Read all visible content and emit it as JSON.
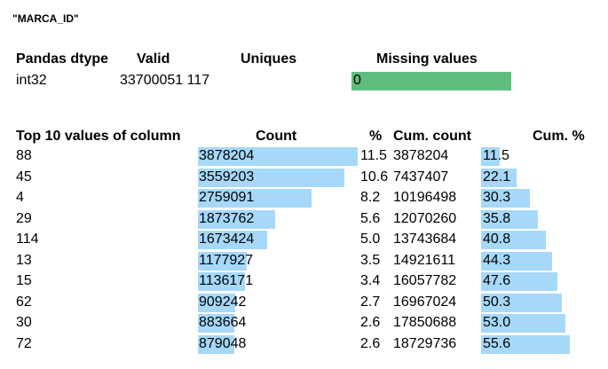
{
  "column_title": "\"MARCA_ID\"",
  "summary": {
    "headers": [
      "Pandas dtype",
      "Valid",
      "Uniques",
      "Missing values"
    ],
    "dtype": "int32",
    "valid_uniques": "33700051 117",
    "missing_value": "0",
    "missing_fraction": 0.0
  },
  "top10": {
    "headers": [
      "Top 10 values of column",
      "Count",
      "%",
      "Cum. count",
      "Cum. %"
    ],
    "rows": [
      {
        "value": "88",
        "count": "3878204",
        "pct": "11.5",
        "cum_count": "3878204",
        "cum_pct": "11.5"
      },
      {
        "value": "45",
        "count": "3559203",
        "pct": "10.6",
        "cum_count": "7437407",
        "cum_pct": "22.1"
      },
      {
        "value": "4",
        "count": "2759091",
        "pct": "8.2",
        "cum_count": "10196498",
        "cum_pct": "30.3"
      },
      {
        "value": "29",
        "count": "1873762",
        "pct": "5.6",
        "cum_count": "12070260",
        "cum_pct": "35.8"
      },
      {
        "value": "114",
        "count": "1673424",
        "pct": "5.0",
        "cum_count": "13743684",
        "cum_pct": "40.8"
      },
      {
        "value": "13",
        "count": "1177927",
        "pct": "3.5",
        "cum_count": "14921611",
        "cum_pct": "44.3"
      },
      {
        "value": "15",
        "count": "1136171",
        "pct": "3.4",
        "cum_count": "16057782",
        "cum_pct": "47.6"
      },
      {
        "value": "62",
        "count": "909242",
        "pct": "2.7",
        "cum_count": "16967024",
        "cum_pct": "50.3"
      },
      {
        "value": "30",
        "count": "883664",
        "pct": "2.6",
        "cum_count": "17850688",
        "cum_pct": "53.0"
      },
      {
        "value": "72",
        "count": "879048",
        "pct": "2.6",
        "cum_count": "18729736",
        "cum_pct": "55.6"
      }
    ]
  },
  "colors": {
    "missing_bar": "#5fbe7d",
    "count_bar": "#a6d8fa",
    "cum_bar": "#a6d8fa"
  }
}
